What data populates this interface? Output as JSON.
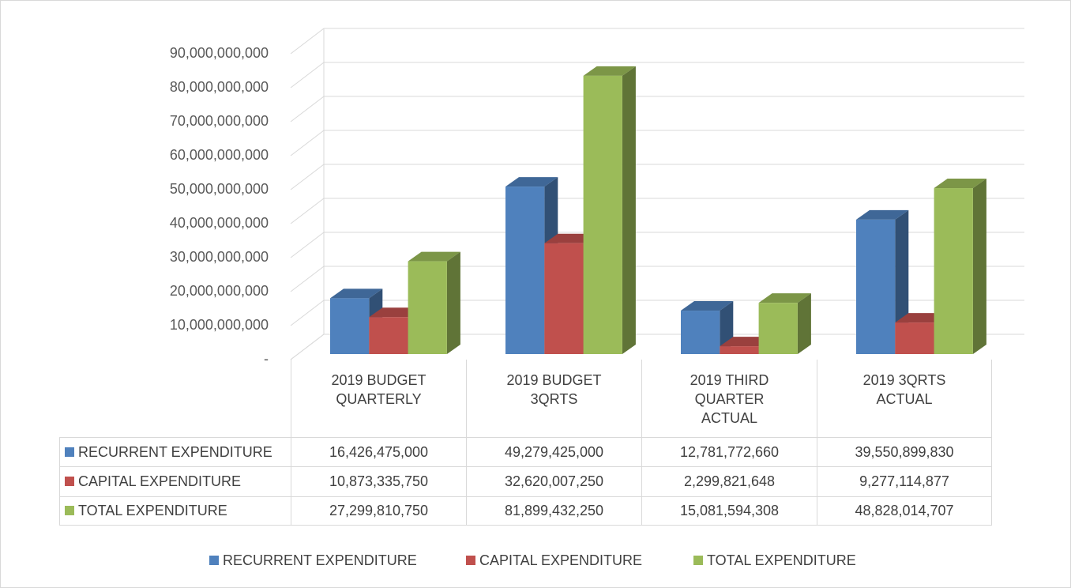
{
  "chart_data": {
    "type": "bar3d",
    "categories": [
      "2019 BUDGET QUARTERLY",
      "2019 BUDGET 3QRTS",
      "2019 THIRD QUARTER ACTUAL",
      "2019 3QRTS ACTUAL"
    ],
    "series": [
      {
        "name": "RECURRENT EXPENDITURE",
        "color": "#4f81bd",
        "values": [
          16426475000,
          49279425000,
          12781772660,
          39550899830
        ],
        "value_labels": [
          "16,426,475,000",
          "49,279,425,000",
          "12,781,772,660",
          "39,550,899,830"
        ]
      },
      {
        "name": "CAPITAL EXPENDITURE",
        "color": "#c0504d",
        "values": [
          10873335750,
          32620007250,
          2299821648,
          9277114877
        ],
        "value_labels": [
          "10,873,335,750",
          "32,620,007,250",
          "2,299,821,648",
          "9,277,114,877"
        ]
      },
      {
        "name": "TOTAL EXPENDITURE",
        "color": "#9bbb59",
        "values": [
          27299810750,
          81899432250,
          15081594308,
          48828014707
        ],
        "value_labels": [
          "27,299,810,750",
          "81,899,432,250",
          "15,081,594,308",
          "48,828,014,707"
        ]
      }
    ],
    "ylim": [
      0,
      90000000000
    ],
    "yticks": [
      {
        "value": 0,
        "label": "-"
      },
      {
        "value": 10000000000,
        "label": "10,000,000,000"
      },
      {
        "value": 20000000000,
        "label": "20,000,000,000"
      },
      {
        "value": 30000000000,
        "label": "30,000,000,000"
      },
      {
        "value": 40000000000,
        "label": "40,000,000,000"
      },
      {
        "value": 50000000000,
        "label": "50,000,000,000"
      },
      {
        "value": 60000000000,
        "label": "60,000,000,000"
      },
      {
        "value": 70000000000,
        "label": "70,000,000,000"
      },
      {
        "value": 80000000000,
        "label": "80,000,000,000"
      },
      {
        "value": 90000000000,
        "label": "90,000,000,000"
      }
    ],
    "grid": true,
    "legend": "bottom"
  }
}
